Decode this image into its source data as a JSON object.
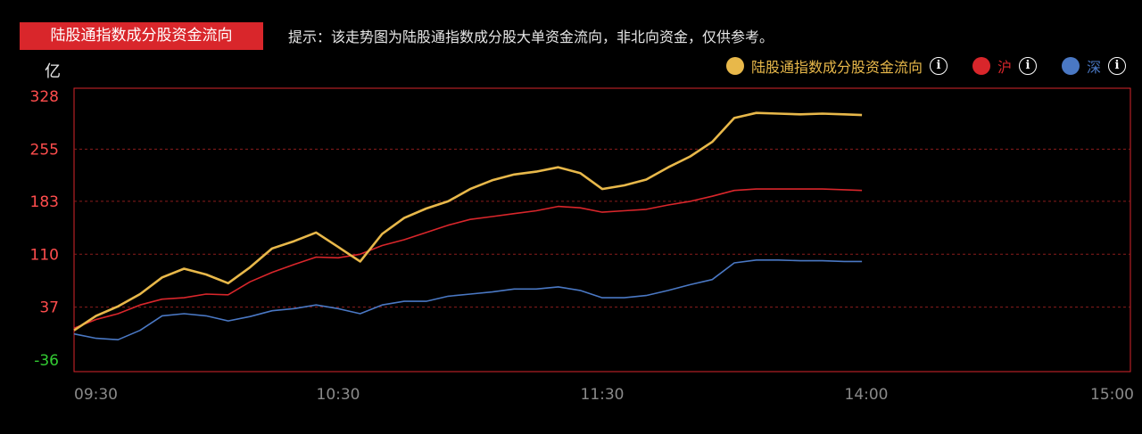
{
  "header": {
    "tag": "陆股通指数成分股资金流向",
    "hint": "提示：该走势图为陆股通指数成分股大单资金流向，非北向资金，仅供参考。"
  },
  "legend": [
    {
      "label": "陆股通指数成分股资金流向",
      "color": "#e8b84a",
      "label_color": "#e8b84a",
      "icon": "info-icon"
    },
    {
      "label": "沪",
      "color": "#d9262b",
      "label_color": "#d9262b",
      "icon": "info-icon"
    },
    {
      "label": "深",
      "color": "#4a78c4",
      "label_color": "#4a78c4",
      "icon": "info-icon"
    }
  ],
  "chart_data": {
    "type": "line",
    "unit": "亿",
    "y_ticks": [
      "328",
      "255",
      "183",
      "110",
      "37",
      "-36"
    ],
    "y_tick_values": [
      328,
      255,
      183,
      110,
      37,
      -36
    ],
    "y_tick_colors": [
      "#ff4d4d",
      "#ff4d4d",
      "#ff4d4d",
      "#ff4d4d",
      "#ff4d4d",
      "#33cc33"
    ],
    "ylim": [
      -36,
      328
    ],
    "x_ticks": [
      "09:30",
      "10:30",
      "11:30",
      "14:00",
      "15:00"
    ],
    "x_tick_minutes": [
      0,
      60,
      120,
      180,
      240
    ],
    "grid": "dashed horizontal",
    "series": [
      {
        "name": "陆股通指数成分股资金流向",
        "color": "#e8b84a",
        "x": [
          0,
          5,
          10,
          15,
          20,
          25,
          30,
          35,
          40,
          45,
          50,
          55,
          60,
          65,
          70,
          75,
          80,
          85,
          90,
          95,
          100,
          105,
          110,
          115,
          120,
          125,
          130,
          135,
          140,
          145,
          150,
          155,
          160,
          165,
          170,
          175,
          179
        ],
        "y": [
          5,
          25,
          38,
          55,
          78,
          90,
          82,
          70,
          92,
          118,
          128,
          140,
          120,
          100,
          138,
          160,
          173,
          183,
          200,
          212,
          220,
          224,
          230,
          222,
          200,
          205,
          213,
          230,
          245,
          265,
          298,
          305,
          304,
          303,
          304,
          303,
          302
        ]
      },
      {
        "name": "沪",
        "color": "#d9262b",
        "x": [
          0,
          5,
          10,
          15,
          20,
          25,
          30,
          35,
          40,
          45,
          50,
          55,
          60,
          65,
          70,
          75,
          80,
          85,
          90,
          95,
          100,
          105,
          110,
          115,
          120,
          125,
          130,
          135,
          140,
          145,
          150,
          155,
          160,
          165,
          170,
          175,
          179
        ],
        "y": [
          8,
          20,
          28,
          40,
          48,
          50,
          55,
          54,
          72,
          85,
          96,
          106,
          105,
          110,
          122,
          130,
          140,
          150,
          158,
          162,
          166,
          170,
          176,
          174,
          168,
          170,
          172,
          178,
          183,
          190,
          198,
          200,
          200,
          200,
          200,
          199,
          198
        ]
      },
      {
        "name": "深",
        "color": "#4a78c4",
        "x": [
          0,
          5,
          10,
          15,
          20,
          25,
          30,
          35,
          40,
          45,
          50,
          55,
          60,
          65,
          70,
          75,
          80,
          85,
          90,
          95,
          100,
          105,
          110,
          115,
          120,
          125,
          130,
          135,
          140,
          145,
          150,
          155,
          160,
          165,
          170,
          175,
          179
        ],
        "y": [
          0,
          -6,
          -8,
          5,
          25,
          28,
          25,
          18,
          24,
          32,
          35,
          40,
          35,
          28,
          40,
          45,
          45,
          52,
          55,
          58,
          62,
          62,
          65,
          60,
          50,
          50,
          53,
          60,
          68,
          75,
          98,
          102,
          102,
          101,
          101,
          100,
          100
        ]
      }
    ]
  }
}
